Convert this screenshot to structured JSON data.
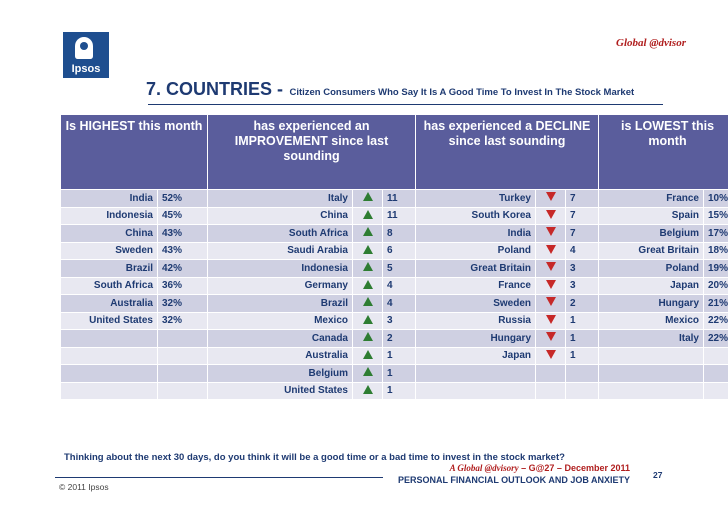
{
  "brand": "Global @dvisor",
  "logo_text": "Ipsos",
  "title": {
    "main": "7. COUNTRIES -",
    "sub": "Citizen Consumers Who Say It Is A Good Time To Invest In The Stock Market"
  },
  "headers": {
    "highest": "Is HIGHEST this month",
    "improvement": "has experienced an IMPROVEMENT since last sounding",
    "decline": "has experienced a DECLINE since last sounding",
    "lowest": "is LOWEST this month"
  },
  "rows": [
    {
      "hc": "India",
      "hv": "52%",
      "ic": "Italy",
      "iv": "11",
      "dc": "Turkey",
      "dv": "7",
      "lc": "France",
      "lv": "10%"
    },
    {
      "hc": "Indonesia",
      "hv": "45%",
      "ic": "China",
      "iv": "11",
      "dc": "South Korea",
      "dv": "7",
      "lc": "Spain",
      "lv": "15%"
    },
    {
      "hc": "China",
      "hv": "43%",
      "ic": "South Africa",
      "iv": "8",
      "dc": "India",
      "dv": "7",
      "lc": "Belgium",
      "lv": "17%"
    },
    {
      "hc": "Sweden",
      "hv": "43%",
      "ic": "Saudi Arabia",
      "iv": "6",
      "dc": "Poland",
      "dv": "4",
      "lc": "Great Britain",
      "lv": "18%"
    },
    {
      "hc": "Brazil",
      "hv": "42%",
      "ic": "Indonesia",
      "iv": "5",
      "dc": "Great Britain",
      "dv": "3",
      "lc": "Poland",
      "lv": "19%"
    },
    {
      "hc": "South Africa",
      "hv": "36%",
      "ic": "Germany",
      "iv": "4",
      "dc": "France",
      "dv": "3",
      "lc": "Japan",
      "lv": "20%"
    },
    {
      "hc": "Australia",
      "hv": "32%",
      "ic": "Brazil",
      "iv": "4",
      "dc": "Sweden",
      "dv": "2",
      "lc": "Hungary",
      "lv": "21%"
    },
    {
      "hc": "United States",
      "hv": "32%",
      "ic": "Mexico",
      "iv": "3",
      "dc": "Russia",
      "dv": "1",
      "lc": "Mexico",
      "lv": "22%"
    },
    {
      "hc": "",
      "hv": "",
      "ic": "Canada",
      "iv": "2",
      "dc": "Hungary",
      "dv": "1",
      "lc": "Italy",
      "lv": "22%"
    },
    {
      "hc": "",
      "hv": "",
      "ic": "Australia",
      "iv": "1",
      "dc": "Japan",
      "dv": "1",
      "lc": "",
      "lv": ""
    },
    {
      "hc": "",
      "hv": "",
      "ic": "Belgium",
      "iv": "1",
      "dc": "",
      "dv": "",
      "lc": "",
      "lv": ""
    },
    {
      "hc": "",
      "hv": "",
      "ic": "United States",
      "iv": "1",
      "dc": "",
      "dv": "",
      "lc": "",
      "lv": ""
    }
  ],
  "question": "Thinking about the next 30 days, do you think it will be a good time or a bad time to invest in the stock market?",
  "footer": {
    "line1_brand": "A Global @dvisory",
    "line1_rest": " – G@27 – December 2011",
    "line2": "PERSONAL FINANCIAL OUTLOOK AND JOB ANXIETY",
    "page": "27",
    "copyright": "© 2011 Ipsos"
  },
  "colors": {
    "header_bg": "#5a5d9c",
    "row_dark": "#cfd0e2",
    "row_light": "#e8e8f1",
    "text": "#1e3a72",
    "up_arrow": "#2e7d32",
    "down_arrow": "#c62828",
    "brand_red": "#b01e1e"
  },
  "icons": {
    "up": "triangle-up-icon",
    "down": "triangle-down-icon"
  }
}
